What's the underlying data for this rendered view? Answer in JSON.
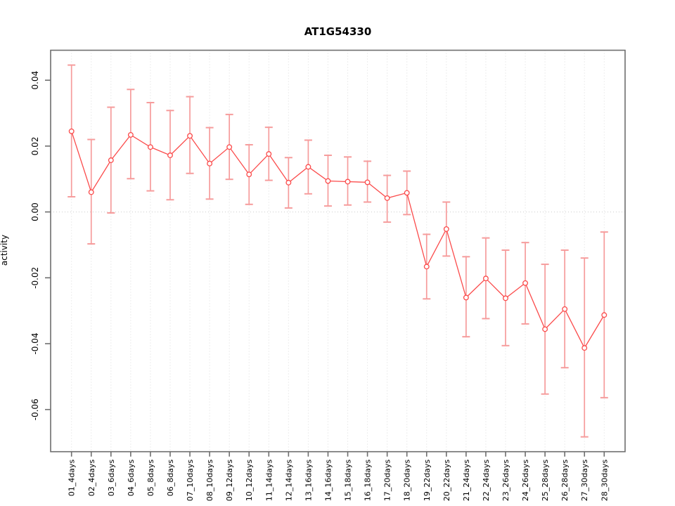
{
  "window": {
    "background": "#ffffff"
  },
  "chart_data": {
    "type": "line",
    "title": "AT1G54330",
    "xlabel": "",
    "ylabel": "activity",
    "legend": "none",
    "grid": "vertical dotted gridlines at every category; dotted horizontal reference line at y=0",
    "marker": "open-circle",
    "error_bars": true,
    "categories": [
      "01_4days",
      "02_4days",
      "03_6days",
      "04_6days",
      "05_8days",
      "06_8days",
      "07_10days",
      "08_10days",
      "09_12days",
      "10_12days",
      "11_14days",
      "12_14days",
      "13_16days",
      "14_16days",
      "15_18days",
      "16_18days",
      "17_20days",
      "18_20days",
      "19_22days",
      "20_22days",
      "21_24days",
      "22_24days",
      "23_26days",
      "24_26days",
      "25_28days",
      "26_28days",
      "27_30days",
      "28_30days"
    ],
    "series": [
      {
        "name": "activity",
        "values": [
          0.0245,
          0.006,
          0.0157,
          0.0234,
          0.0197,
          0.0172,
          0.0231,
          0.0147,
          0.0197,
          0.0114,
          0.0176,
          0.0089,
          0.0137,
          0.0094,
          0.0092,
          0.009,
          0.0042,
          0.0058,
          -0.0166,
          -0.0052,
          -0.026,
          -0.0202,
          -0.0262,
          -0.0216,
          -0.0356,
          -0.0295,
          -0.0413,
          -0.0313
        ],
        "lower": [
          0.0046,
          -0.0097,
          -0.0003,
          0.0101,
          0.0064,
          0.0037,
          0.0117,
          0.0039,
          0.0099,
          0.0023,
          0.0096,
          0.0012,
          0.0055,
          0.0018,
          0.0021,
          0.003,
          -0.0031,
          -0.0008,
          -0.0264,
          -0.0134,
          -0.0379,
          -0.0324,
          -0.0406,
          -0.034,
          -0.0553,
          -0.0473,
          -0.0683,
          -0.0564
        ],
        "upper": [
          0.0446,
          0.022,
          0.0318,
          0.0372,
          0.0332,
          0.0308,
          0.035,
          0.0256,
          0.0296,
          0.0204,
          0.0257,
          0.0165,
          0.0218,
          0.0172,
          0.0167,
          0.0154,
          0.0111,
          0.0124,
          -0.0068,
          0.003,
          -0.0136,
          -0.0079,
          -0.0116,
          -0.0093,
          -0.0159,
          -0.0116,
          -0.014,
          -0.0061
        ]
      }
    ],
    "ylim": [
      -0.0728,
      0.0491
    ],
    "yticks": [
      0.04,
      0.02,
      0.0,
      -0.02,
      -0.04,
      -0.06
    ],
    "ytick_labels": [
      "0.04",
      "0.02",
      "0.00",
      "-0.02",
      "-0.04",
      "-0.06"
    ],
    "colors": {
      "line": "#fb4b4b",
      "point": "#fb4b4b",
      "error_bar": "#f69c9c",
      "frame": "#6e6e6e",
      "tick": "#6e6e6e",
      "gridline": "#dcdcdc",
      "zero_line": "#cccccc",
      "text": "#000000"
    }
  }
}
